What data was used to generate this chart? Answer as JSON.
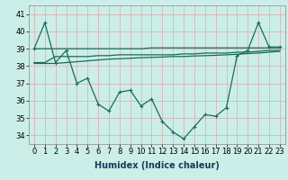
{
  "xlabel": "Humidex (Indice chaleur)",
  "bg_color": "#cceee8",
  "grid_color": "#ddaaaa",
  "line_color": "#1a6b5a",
  "x": [
    0,
    1,
    2,
    3,
    4,
    5,
    6,
    7,
    8,
    9,
    10,
    11,
    12,
    13,
    14,
    15,
    16,
    17,
    18,
    19,
    20,
    21,
    22,
    23
  ],
  "y_main": [
    39.0,
    40.5,
    38.2,
    38.9,
    37.0,
    37.3,
    35.8,
    35.4,
    36.5,
    36.6,
    35.7,
    36.1,
    34.8,
    34.2,
    33.8,
    34.5,
    35.2,
    35.1,
    35.6,
    38.6,
    38.9,
    40.5,
    39.1,
    39.1
  ],
  "y_upper": [
    39.0,
    39.0,
    39.0,
    39.0,
    39.0,
    39.0,
    39.0,
    39.0,
    39.0,
    39.0,
    39.0,
    39.05,
    39.05,
    39.05,
    39.05,
    39.05,
    39.05,
    39.05,
    39.05,
    39.05,
    39.05,
    39.05,
    39.05,
    39.05
  ],
  "y_mid1": [
    38.2,
    38.2,
    38.55,
    38.55,
    38.55,
    38.55,
    38.6,
    38.6,
    38.65,
    38.65,
    38.65,
    38.65,
    38.65,
    38.65,
    38.7,
    38.7,
    38.75,
    38.75,
    38.75,
    38.8,
    38.8,
    38.85,
    38.9,
    38.9
  ],
  "y_mid2": [
    38.15,
    38.15,
    38.15,
    38.2,
    38.25,
    38.3,
    38.35,
    38.4,
    38.42,
    38.45,
    38.48,
    38.5,
    38.52,
    38.55,
    38.55,
    38.58,
    38.6,
    38.62,
    38.65,
    38.68,
    38.72,
    38.75,
    38.8,
    38.85
  ],
  "ylim": [
    33.5,
    41.5
  ],
  "yticks": [
    34,
    35,
    36,
    37,
    38,
    39,
    40,
    41
  ],
  "xlim": [
    -0.5,
    23.5
  ],
  "tick_fontsize": 6,
  "xlabel_fontsize": 7
}
